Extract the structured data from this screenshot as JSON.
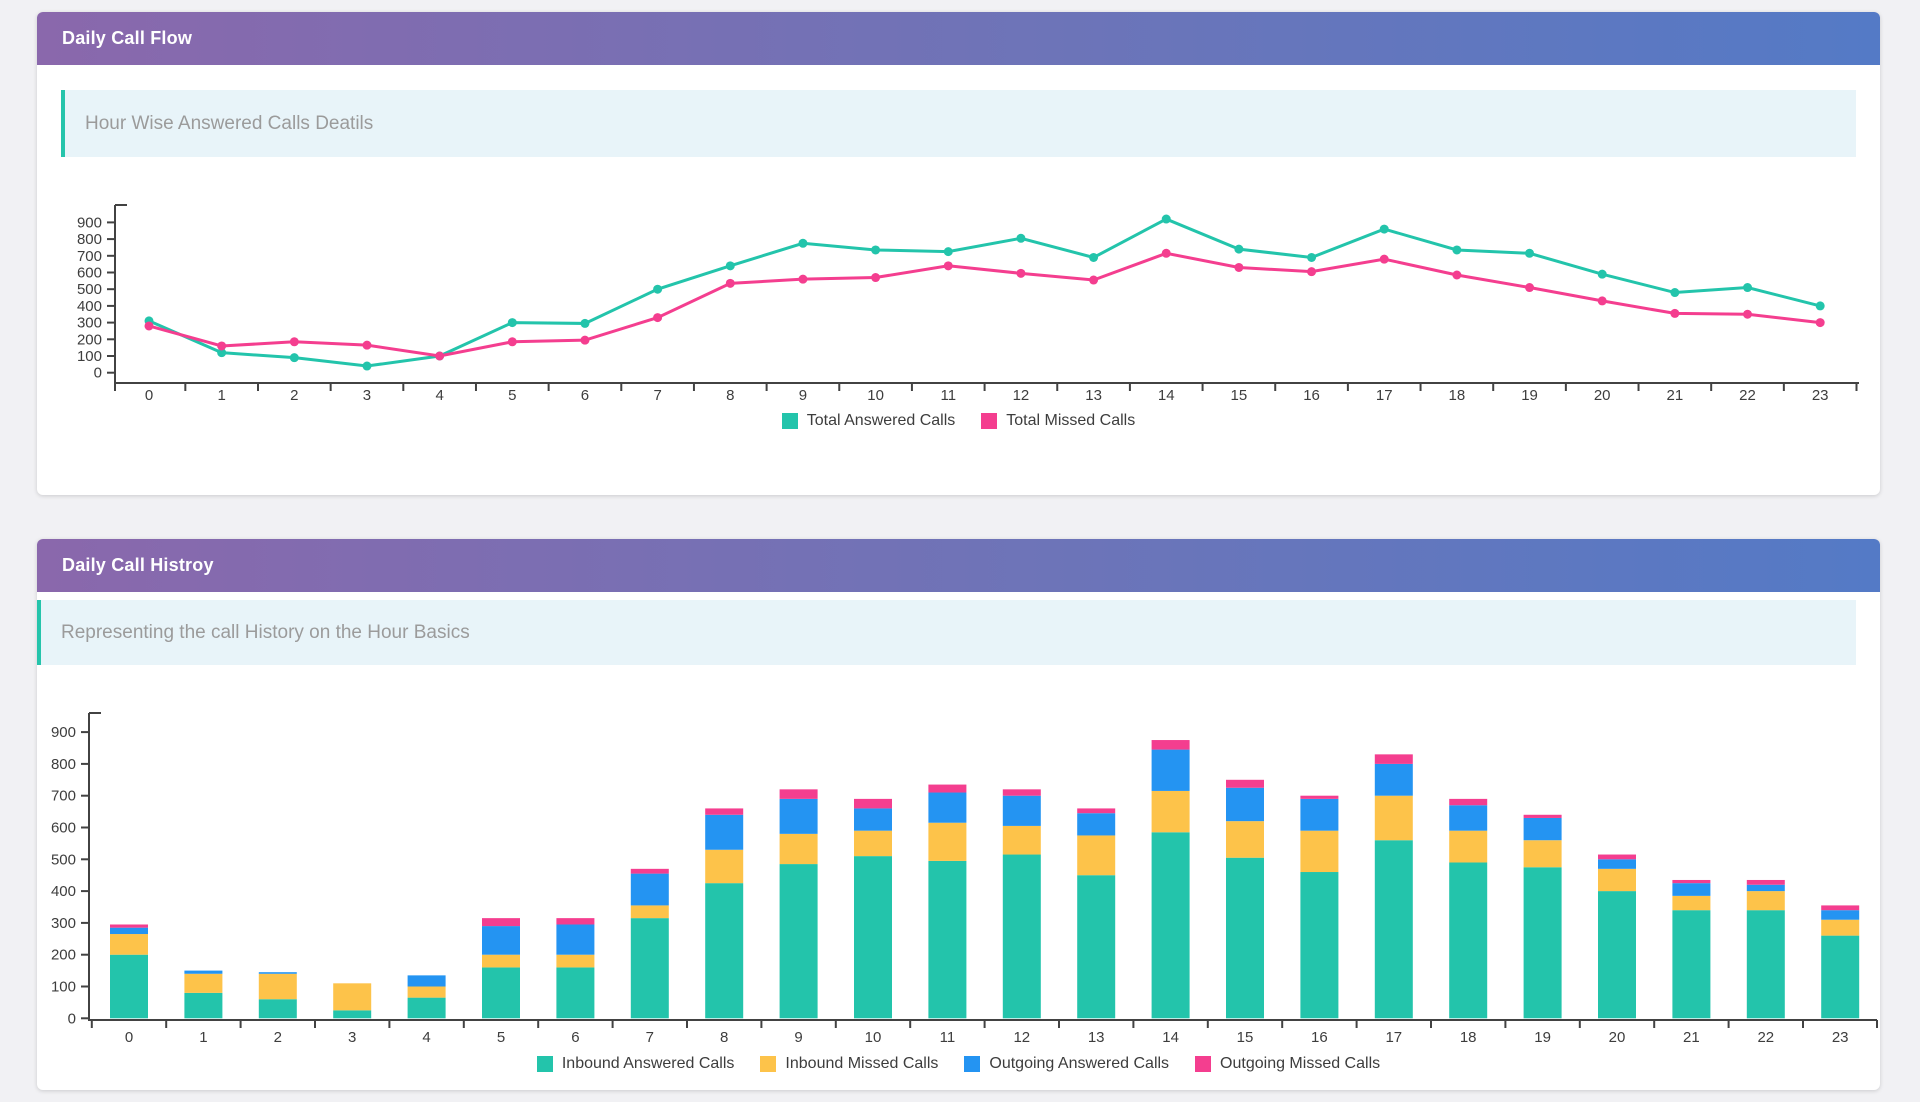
{
  "page": {
    "background": "#f1f1f4"
  },
  "cards": [
    {
      "title": "Daily Call Flow",
      "subtitle": "Hour Wise Answered Calls Deatils"
    },
    {
      "title": "Daily Call Histroy",
      "subtitle": "Representing the call History on the Hour Basics"
    }
  ],
  "colors": {
    "teal": "#23c4ab",
    "pink": "#f43e8f",
    "orange": "#fdc34a",
    "blue": "#2494f2",
    "axis": "#424242",
    "header_gradient_start": "#8a68ac",
    "header_gradient_end": "#547ac6"
  },
  "chart_data": [
    {
      "type": "line",
      "title": "Hour Wise Answered Calls Deatils",
      "categories": [
        "0",
        "1",
        "2",
        "3",
        "4",
        "5",
        "6",
        "7",
        "8",
        "9",
        "10",
        "11",
        "12",
        "13",
        "14",
        "15",
        "16",
        "17",
        "18",
        "19",
        "20",
        "21",
        "22",
        "23"
      ],
      "xlabel": "",
      "ylabel": "",
      "ylim": [
        0,
        900
      ],
      "ytick_step": 100,
      "grid": false,
      "legend_position": "bottom",
      "series": [
        {
          "name": "Total Answered Calls",
          "color": "#23c4ab",
          "values": [
            310,
            120,
            90,
            40,
            100,
            300,
            295,
            500,
            640,
            775,
            735,
            725,
            805,
            690,
            920,
            740,
            690,
            860,
            735,
            715,
            590,
            480,
            510,
            400
          ]
        },
        {
          "name": "Total Missed Calls",
          "color": "#f43e8f",
          "values": [
            280,
            160,
            185,
            165,
            100,
            185,
            195,
            330,
            535,
            560,
            570,
            640,
            595,
            555,
            715,
            630,
            605,
            680,
            585,
            510,
            430,
            355,
            350,
            300
          ]
        }
      ]
    },
    {
      "type": "bar",
      "stacked": true,
      "title": "Representing the call History on the Hour Basics",
      "categories": [
        "0",
        "1",
        "2",
        "3",
        "4",
        "5",
        "6",
        "7",
        "8",
        "9",
        "10",
        "11",
        "12",
        "13",
        "14",
        "15",
        "16",
        "17",
        "18",
        "19",
        "20",
        "21",
        "22",
        "23"
      ],
      "xlabel": "",
      "ylabel": "",
      "ylim": [
        0,
        900
      ],
      "ytick_step": 100,
      "grid": false,
      "legend_position": "bottom",
      "series": [
        {
          "name": "Inbound Answered Calls",
          "color": "#23c4ab",
          "values": [
            200,
            80,
            60,
            25,
            65,
            160,
            160,
            315,
            425,
            485,
            510,
            495,
            515,
            450,
            585,
            505,
            460,
            560,
            490,
            475,
            400,
            340,
            340,
            260
          ]
        },
        {
          "name": "Inbound Missed Calls",
          "color": "#fdc34a",
          "values": [
            65,
            60,
            80,
            85,
            35,
            40,
            40,
            40,
            105,
            95,
            80,
            120,
            90,
            125,
            130,
            115,
            130,
            140,
            100,
            85,
            70,
            45,
            60,
            50
          ]
        },
        {
          "name": "Outgoing Answered Calls",
          "color": "#2494f2",
          "values": [
            20,
            10,
            5,
            0,
            35,
            90,
            95,
            100,
            110,
            110,
            70,
            95,
            95,
            70,
            130,
            105,
            100,
            100,
            80,
            70,
            30,
            40,
            20,
            30
          ]
        },
        {
          "name": "Outgoing Missed Calls",
          "color": "#f43e8f",
          "values": [
            10,
            0,
            0,
            0,
            0,
            25,
            20,
            15,
            20,
            30,
            30,
            25,
            20,
            15,
            30,
            25,
            10,
            30,
            20,
            10,
            15,
            10,
            15,
            15
          ]
        }
      ]
    }
  ]
}
